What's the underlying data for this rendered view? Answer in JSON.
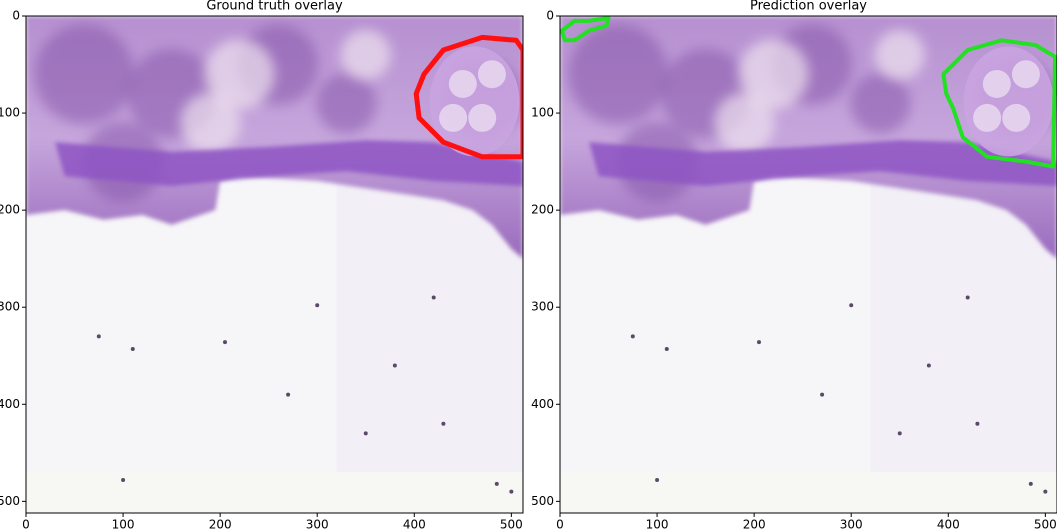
{
  "chart_data": [
    {
      "type": "image",
      "title": "Ground truth overlay",
      "overlay_color": "#ff1010",
      "xlim": [
        0,
        512
      ],
      "ylim": [
        512,
        0
      ],
      "xticks": [
        0,
        100,
        200,
        300,
        400,
        500
      ],
      "yticks": [
        0,
        100,
        200,
        300,
        400,
        500
      ]
    },
    {
      "type": "image",
      "title": "Prediction overlay",
      "overlay_color": "#22e022",
      "xlim": [
        0,
        512
      ],
      "ylim": [
        512,
        0
      ],
      "xticks": [
        0,
        100,
        200,
        300,
        400,
        500
      ],
      "yticks": [
        0,
        100,
        200,
        300,
        400,
        500
      ]
    }
  ]
}
